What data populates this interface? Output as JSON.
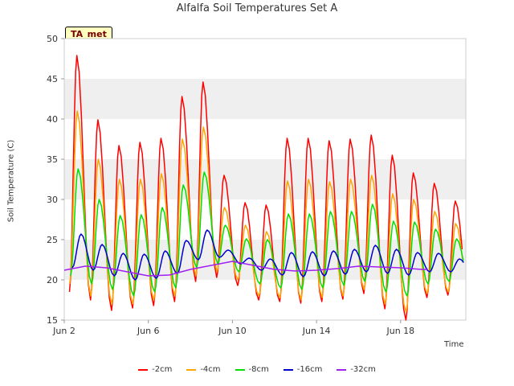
{
  "chart_data": {
    "type": "line",
    "title": "Alfalfa Soil Temperatures Set A",
    "xlabel": "Time",
    "ylabel": "Soil Temperature (C)",
    "badge": "TA_met",
    "ylim": [
      15,
      50
    ],
    "yticks": [
      "15",
      "20",
      "25",
      "30",
      "35",
      "40",
      "45",
      "50"
    ],
    "xlim": [
      "Jun 2",
      "Jun 20"
    ],
    "xticks": [
      "Jun 2",
      "Jun 6",
      "Jun 10",
      "Jun 14",
      "Jun 18"
    ],
    "grid": "horizontal bands",
    "legend_position": "bottom",
    "series": [
      {
        "name": "-2cm",
        "color": "#ff0000",
        "daily_min": [
          18.5,
          17.5,
          16.2,
          16.5,
          16.8,
          17.3,
          19.8,
          20.3,
          19.3,
          17.5,
          17.3,
          17.1,
          17.3,
          17.6,
          18.3,
          16.4,
          15.0,
          17.8,
          18.1,
          17.8,
          18.2
        ],
        "daily_max": [
          47.9,
          39.9,
          36.7,
          37.1,
          37.6,
          42.8,
          44.6,
          33.0,
          29.6,
          29.3,
          37.6,
          37.6,
          37.3,
          37.5,
          38.0,
          35.5,
          33.3,
          32.0,
          29.8
        ]
      },
      {
        "name": "-4cm",
        "color": "#ffa500",
        "daily_min": [
          19.5,
          18.0,
          17.0,
          17.0,
          17.5,
          18.0,
          20.5,
          21.0,
          20.0,
          18.0,
          17.8,
          17.5,
          17.8,
          18.0,
          18.8,
          17.0,
          16.0,
          18.3,
          18.5,
          18.3,
          18.8
        ],
        "daily_max": [
          41.0,
          35.0,
          32.5,
          32.5,
          33.2,
          37.5,
          39.0,
          29.0,
          26.8,
          26.0,
          32.3,
          32.5,
          32.2,
          32.5,
          33.0,
          30.7,
          30.0,
          28.5,
          27.0
        ]
      },
      {
        "name": "-8cm",
        "color": "#00e000",
        "daily_min": [
          20.5,
          19.5,
          18.8,
          18.0,
          18.5,
          19.0,
          21.5,
          22.0,
          21.0,
          19.5,
          19.0,
          18.8,
          19.0,
          19.3,
          19.8,
          18.5,
          18.0,
          19.5,
          19.8,
          19.6,
          20.0
        ],
        "daily_max": [
          33.8,
          30.0,
          28.0,
          28.1,
          29.0,
          31.8,
          33.4,
          26.8,
          25.1,
          25.0,
          28.2,
          28.2,
          28.5,
          28.5,
          29.4,
          27.3,
          27.2,
          26.3,
          25.1
        ]
      },
      {
        "name": "-16cm",
        "color": "#0000cc",
        "daily_min": [
          21.5,
          21.2,
          20.5,
          20.0,
          20.2,
          20.8,
          22.5,
          22.8,
          22.0,
          21.2,
          20.6,
          20.4,
          20.5,
          20.7,
          21.0,
          20.8,
          20.6,
          21.0,
          21.0,
          20.8,
          21.2
        ],
        "daily_max": [
          25.7,
          24.4,
          23.3,
          23.2,
          23.6,
          24.9,
          26.2,
          23.7,
          22.7,
          22.6,
          23.4,
          23.5,
          23.6,
          23.8,
          24.3,
          23.8,
          23.4,
          23.3,
          22.6
        ]
      },
      {
        "name": "-32cm",
        "color": "#a020f0",
        "trend_x": [
          2.0,
          3.0,
          4.0,
          5.0,
          6.0,
          7.0,
          8.0,
          9.0,
          10.0,
          11.0,
          12.0,
          13.0,
          14.0,
          15.0,
          16.0,
          17.0,
          18.0,
          19.0,
          19.3
        ],
        "trend_y": [
          21.2,
          21.7,
          21.5,
          21.0,
          20.5,
          20.6,
          21.3,
          21.8,
          22.3,
          21.8,
          21.3,
          21.1,
          21.2,
          21.4,
          21.7,
          21.6,
          21.5,
          21.3,
          21.3
        ]
      }
    ]
  }
}
